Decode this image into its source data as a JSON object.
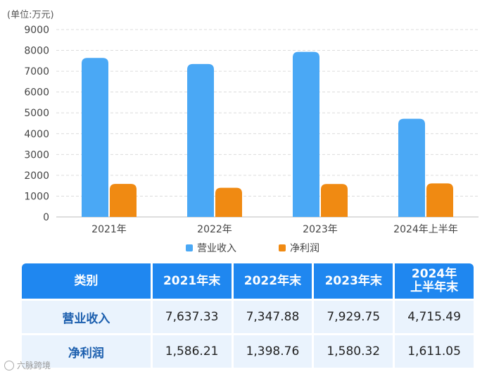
{
  "chart_data": {
    "type": "bar",
    "unit_label": "(单位:万元)",
    "categories": [
      "2021年",
      "2022年",
      "2023年",
      "2024年上半年"
    ],
    "series": [
      {
        "name": "营业收入",
        "color": "#4aa8f5",
        "values": [
          7637.33,
          7347.88,
          7929.75,
          4715.49
        ]
      },
      {
        "name": "净利润",
        "color": "#f08a12",
        "values": [
          1586.21,
          1398.76,
          1580.32,
          1611.05
        ]
      }
    ],
    "ylim": [
      0,
      9000
    ],
    "yticks": [
      0,
      1000,
      2000,
      3000,
      4000,
      5000,
      6000,
      7000,
      8000,
      9000
    ],
    "grid": true,
    "legend_position": "bottom"
  },
  "table": {
    "headers": [
      "类别",
      "2021年末",
      "2022年末",
      "2023年末",
      "2024年\n上半年末"
    ],
    "rows": [
      {
        "label": "营业收入",
        "values": [
          "7,637.33",
          "7,347.88",
          "7,929.75",
          "4,715.49"
        ]
      },
      {
        "label": "净利润",
        "values": [
          "1,586.21",
          "1,398.76",
          "1,580.32",
          "1,611.05"
        ]
      }
    ]
  },
  "watermark": "六脉跨境"
}
